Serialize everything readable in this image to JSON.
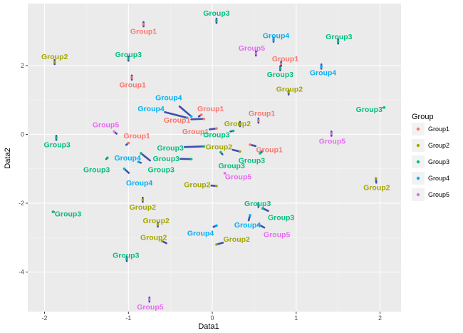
{
  "chart_data": {
    "type": "scatter",
    "xlabel": "Data1",
    "ylabel": "Data2",
    "xlim": [
      -2.2,
      2.25
    ],
    "ylim": [
      -5.15,
      3.8
    ],
    "x_ticks": [
      -2,
      -1,
      0,
      1,
      2
    ],
    "y_ticks": [
      -4,
      -2,
      0,
      2
    ],
    "grid": true,
    "legend": {
      "title": "Group",
      "placement": "right",
      "entries": [
        {
          "name": "Group1",
          "color": "#F8766D"
        },
        {
          "name": "Group2",
          "color": "#A3A500"
        },
        {
          "name": "Group3",
          "color": "#00BF7D"
        },
        {
          "name": "Group4",
          "color": "#00B0F6"
        },
        {
          "name": "Group5",
          "color": "#E76BF3"
        }
      ]
    },
    "segment_color": "#3F4FAF",
    "points": [
      {
        "label": "Group3",
        "group": "Group3",
        "x": 0.05,
        "y": 3.3,
        "lx": 0.05,
        "ly": 3.53
      },
      {
        "label": "Group1",
        "group": "Group1",
        "x": -0.82,
        "y": 3.2,
        "lx": -0.82,
        "ly": 3.0
      },
      {
        "label": "Group4",
        "group": "Group4",
        "x": 0.73,
        "y": 2.75,
        "lx": 0.76,
        "ly": 2.88
      },
      {
        "label": "Group3",
        "group": "Group3",
        "x": 1.5,
        "y": 2.7,
        "lx": 1.51,
        "ly": 2.85
      },
      {
        "label": "Group5",
        "group": "Group5",
        "x": 0.52,
        "y": 2.35,
        "lx": 0.47,
        "ly": 2.52
      },
      {
        "label": "Group2",
        "group": "Group2",
        "x": -1.88,
        "y": 2.1,
        "lx": -1.88,
        "ly": 2.27
      },
      {
        "label": "Group3",
        "group": "Group3",
        "x": -1.0,
        "y": 2.2,
        "lx": -1.0,
        "ly": 2.33
      },
      {
        "label": "Group1",
        "group": "Group1",
        "x": 0.82,
        "y": 2.05,
        "lx": 0.87,
        "ly": 2.2
      },
      {
        "label": "Group3",
        "group": "Group3",
        "x": 0.81,
        "y": 1.92,
        "lx": 0.81,
        "ly": 1.75
      },
      {
        "label": "Group4",
        "group": "Group4",
        "x": 1.3,
        "y": 1.97,
        "lx": 1.32,
        "ly": 1.8
      },
      {
        "label": "Group1",
        "group": "Group1",
        "x": -0.96,
        "y": 1.65,
        "lx": -0.95,
        "ly": 1.45
      },
      {
        "label": "Group2",
        "group": "Group2",
        "x": 0.91,
        "y": 1.22,
        "lx": 0.92,
        "ly": 1.32
      },
      {
        "label": "Group4",
        "group": "Group4",
        "x": -0.25,
        "y": 0.52,
        "lx": -0.52,
        "ly": 1.08
      },
      {
        "label": "Group4",
        "group": "Group4",
        "x": -0.3,
        "y": 0.48,
        "lx": -0.73,
        "ly": 0.75
      },
      {
        "label": "Group1",
        "group": "Group1",
        "x": -0.13,
        "y": 0.57,
        "lx": -0.02,
        "ly": 0.75
      },
      {
        "label": "Group3",
        "group": "Group3",
        "x": 2.05,
        "y": 0.78,
        "lx": 1.87,
        "ly": 0.73
      },
      {
        "label": "Group1",
        "group": "Group1",
        "x": 0.55,
        "y": 0.4,
        "lx": 0.59,
        "ly": 0.62
      },
      {
        "label": "Group1",
        "group": "Group1",
        "x": -0.1,
        "y": 0.45,
        "lx": -0.42,
        "ly": 0.42
      },
      {
        "label": "Group2",
        "group": "Group2",
        "x": 0.33,
        "y": 0.3,
        "lx": 0.3,
        "ly": 0.32
      },
      {
        "label": "Group5",
        "group": "Group5",
        "x": -1.17,
        "y": 0.08,
        "lx": -1.27,
        "ly": 0.29
      },
      {
        "label": "Group1",
        "group": "Group1",
        "x": 0.05,
        "y": 0.17,
        "lx": -0.2,
        "ly": 0.09
      },
      {
        "label": "Group3",
        "group": "Group3",
        "x": 0.25,
        "y": 0.1,
        "lx": 0.05,
        "ly": 0.0
      },
      {
        "label": "Group1",
        "group": "Group1",
        "x": -1.0,
        "y": -0.25,
        "lx": -0.9,
        "ly": -0.03
      },
      {
        "label": "Group5",
        "group": "Group5",
        "x": 1.42,
        "y": 0.02,
        "lx": 1.43,
        "ly": -0.19
      },
      {
        "label": "Group3",
        "group": "Group3",
        "x": -1.86,
        "y": -0.1,
        "lx": -1.85,
        "ly": -0.29
      },
      {
        "label": "Group3",
        "group": "Group3",
        "x": -0.1,
        "y": -0.35,
        "lx": -0.5,
        "ly": -0.38
      },
      {
        "label": "Group2",
        "group": "Group2",
        "x": 0.33,
        "y": -0.5,
        "lx": 0.08,
        "ly": -0.35
      },
      {
        "label": "Group1",
        "group": "Group1",
        "x": 0.45,
        "y": -0.3,
        "lx": 0.68,
        "ly": -0.44
      },
      {
        "label": "Group4",
        "group": "Group4",
        "x": -0.88,
        "y": -0.8,
        "lx": -1.01,
        "ly": -0.68
      },
      {
        "label": "Group3",
        "group": "Group3",
        "x": -0.25,
        "y": -0.72,
        "lx": -0.55,
        "ly": -0.7
      },
      {
        "label": "Group3",
        "group": "Group3",
        "x": 0.57,
        "y": -0.55,
        "lx": 0.47,
        "ly": -0.75
      },
      {
        "label": "Group3",
        "group": "Group3",
        "x": 0.1,
        "y": -0.52,
        "lx": 0.23,
        "ly": -0.9
      },
      {
        "label": "Group3",
        "group": "Group3",
        "x": -1.25,
        "y": -0.68,
        "lx": -1.38,
        "ly": -1.02
      },
      {
        "label": "Group3",
        "group": "Group3",
        "x": -0.85,
        "y": -0.55,
        "lx": -0.61,
        "ly": -1.02
      },
      {
        "label": "Group5",
        "group": "Group5",
        "x": 0.15,
        "y": -1.13,
        "lx": 0.31,
        "ly": -1.22
      },
      {
        "label": "Group4",
        "group": "Group4",
        "x": -1.05,
        "y": -1.0,
        "lx": -0.87,
        "ly": -1.4
      },
      {
        "label": "Group2",
        "group": "Group2",
        "x": 0.05,
        "y": -1.5,
        "lx": -0.18,
        "ly": -1.45
      },
      {
        "label": "Group2",
        "group": "Group2",
        "x": 1.95,
        "y": -1.28,
        "lx": 1.96,
        "ly": -1.53
      },
      {
        "label": "Group2",
        "group": "Group2",
        "x": -0.83,
        "y": -1.9,
        "lx": -0.83,
        "ly": -2.1
      },
      {
        "label": "Group3",
        "group": "Group3",
        "x": 0.55,
        "y": -2.05,
        "lx": 0.54,
        "ly": -2.0
      },
      {
        "label": "Group3",
        "group": "Group3",
        "x": -1.9,
        "y": -2.25,
        "lx": -1.72,
        "ly": -2.3
      },
      {
        "label": "Group3",
        "group": "Group3",
        "x": 0.6,
        "y": -2.15,
        "lx": 0.82,
        "ly": -2.4
      },
      {
        "label": "Group2",
        "group": "Group2",
        "x": -0.65,
        "y": -2.62,
        "lx": -0.67,
        "ly": -2.5
      },
      {
        "label": "Group4",
        "group": "Group4",
        "x": 0.45,
        "y": -2.35,
        "lx": 0.42,
        "ly": -2.62
      },
      {
        "label": "Group5",
        "group": "Group5",
        "x": 0.55,
        "y": -2.62,
        "lx": 0.77,
        "ly": -2.9
      },
      {
        "label": "Group4",
        "group": "Group4",
        "x": 0.05,
        "y": -2.65,
        "lx": -0.14,
        "ly": -2.86
      },
      {
        "label": "Group2",
        "group": "Group2",
        "x": -0.6,
        "y": -3.1,
        "lx": -0.7,
        "ly": -2.98
      },
      {
        "label": "Group2",
        "group": "Group2",
        "x": 0.05,
        "y": -3.2,
        "lx": 0.29,
        "ly": -3.04
      },
      {
        "label": "Group3",
        "group": "Group3",
        "x": -1.02,
        "y": -3.62,
        "lx": -1.03,
        "ly": -3.5
      },
      {
        "label": "Group5",
        "group": "Group5",
        "x": -0.75,
        "y": -4.8,
        "lx": -0.74,
        "ly": -5.0
      }
    ]
  }
}
